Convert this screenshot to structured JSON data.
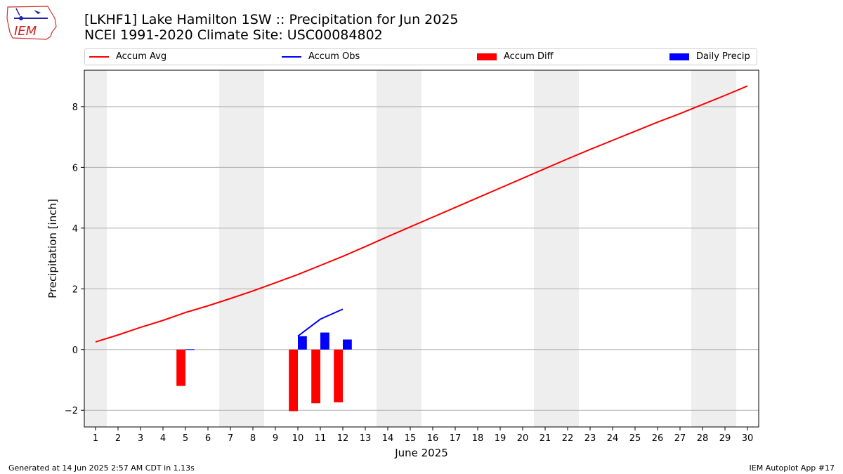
{
  "title": {
    "line1": "[LKHF1] Lake Hamilton 1SW :: Precipitation for Jun 2025",
    "line2": "NCEI 1991-2020 Climate Site: USC00084802"
  },
  "logo": {
    "text": "IEM",
    "icon": "iowa-state-outline-logo"
  },
  "footer": {
    "left": "Generated at 14 Jun 2025 2:57 AM CDT in 1.13s",
    "right": "IEM Autoplot App #17"
  },
  "colors": {
    "avg": "#ff0000",
    "obs": "#0000ff",
    "diff": "#ff0000",
    "daily": "#0000ff",
    "weekend": "#eeeeee",
    "grid": "#b0b0b0"
  },
  "chart_data": {
    "type": "bar",
    "xlabel": "June 2025",
    "ylabel": "Precipitation [inch]",
    "xlim": [
      0.5,
      30.5
    ],
    "ylim": [
      -2.55,
      9.2
    ],
    "yticks": [
      -2,
      0,
      2,
      4,
      6,
      8
    ],
    "grid": "horizontal",
    "legend_placement": "top",
    "x": [
      1,
      2,
      3,
      4,
      5,
      6,
      7,
      8,
      9,
      10,
      11,
      12,
      13,
      14,
      15,
      16,
      17,
      18,
      19,
      20,
      21,
      22,
      23,
      24,
      25,
      26,
      27,
      28,
      29,
      30
    ],
    "weekend_shading": [
      [
        0.5,
        1.5
      ],
      [
        6.5,
        8.5
      ],
      [
        13.5,
        15.5
      ],
      [
        20.5,
        22.5
      ],
      [
        27.5,
        29.5
      ]
    ],
    "series": [
      {
        "name": "Accum Avg",
        "kind": "line",
        "x": [
          1,
          2,
          3,
          4,
          5,
          6,
          7,
          8,
          9,
          10,
          11,
          12,
          13,
          14,
          15,
          16,
          17,
          18,
          19,
          20,
          21,
          22,
          23,
          24,
          25,
          26,
          27,
          28,
          29,
          30
        ],
        "values": [
          0.25,
          0.48,
          0.73,
          0.96,
          1.22,
          1.44,
          1.68,
          1.93,
          2.2,
          2.47,
          2.77,
          3.07,
          3.39,
          3.72,
          4.04,
          4.36,
          4.68,
          5.0,
          5.32,
          5.64,
          5.96,
          6.28,
          6.59,
          6.89,
          7.19,
          7.49,
          7.77,
          8.07,
          8.37,
          8.68
        ]
      },
      {
        "name": "Accum Obs",
        "kind": "line",
        "x": [
          10,
          11,
          12
        ],
        "values": [
          0.44,
          1.0,
          1.33
        ]
      },
      {
        "name": "Accum Diff",
        "kind": "bar",
        "offset": -0.2,
        "x": [
          5,
          10,
          11,
          12
        ],
        "values": [
          -1.2,
          -2.03,
          -1.77,
          -1.74
        ]
      },
      {
        "name": "Daily Precip",
        "kind": "bar",
        "offset": 0.2,
        "x": [
          5,
          10,
          11,
          12
        ],
        "values": [
          0.01,
          0.44,
          0.56,
          0.33
        ]
      }
    ]
  }
}
